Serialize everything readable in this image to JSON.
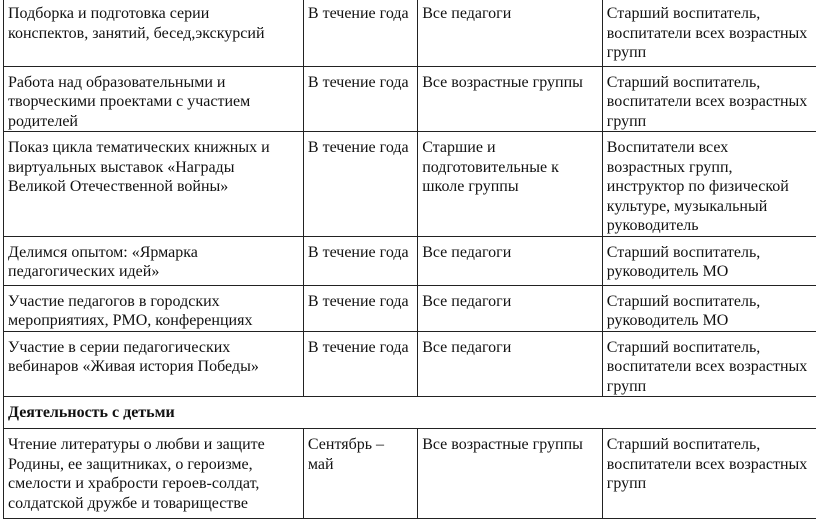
{
  "rows": [
    {
      "activity": "Подборка и подготовка серии\nконспектов, занятий, бесед,экскурсий",
      "period": "В течение года",
      "participants": "Все педагоги",
      "responsible": "Старший воспитатель,\nвоспитатели всех возрастных\nгрупп"
    },
    {
      "activity": "Работа над образовательными и\nтворческими проектами с участием\nродителей",
      "period": "В течение года",
      "participants": "Все возрастные группы",
      "responsible": "Старший воспитатель,\nвоспитатели всех возрастных\nгрупп"
    },
    {
      "activity": "Показ цикла тематических книжных и\nвиртуальных выставок «Награды\nВеликой Отечественной войны»",
      "period": "В течение года",
      "participants": "Старшие и\nподготовительные к\nшколе группы",
      "responsible": "Воспитатели всех\nвозрастных групп,\nинструктор по физической\nкультуре, музыкальный\nруководитель"
    },
    {
      "activity": "Делимся опытом: «Ярмарка\nпедагогических идей»",
      "period": "В течение года",
      "participants": "Все педагоги",
      "responsible": "Старший воспитатель,\nруководитель МО"
    },
    {
      "activity": "Участие педагогов в городских\nмероприятиях, РМО, конференциях",
      "period": "В течение года",
      "participants": "Все педагоги",
      "responsible": "Старший воспитатель,\nруководитель МО"
    },
    {
      "activity": "Участие в серии педагогических\nвебинаров «Живая история Победы»",
      "period": "В течение года",
      "participants": "Все педагоги",
      "responsible": "Старший воспитатель,\nвоспитатели всех возрастных\nгрупп"
    }
  ],
  "section_title": "Деятельность с детьми",
  "rows2": [
    {
      "activity": "Чтение литературы о любви и защите\nРодины, ее защитниках, о героизме,\nсмелости и храбрости героев-солдат,\nсолдатской дружбе и товариществе",
      "period": "Сентябрь –\nмай",
      "participants": "Все возрастные группы",
      "responsible": "Старший воспитатель,\nвоспитатели всех возрастных\nгрупп"
    }
  ]
}
